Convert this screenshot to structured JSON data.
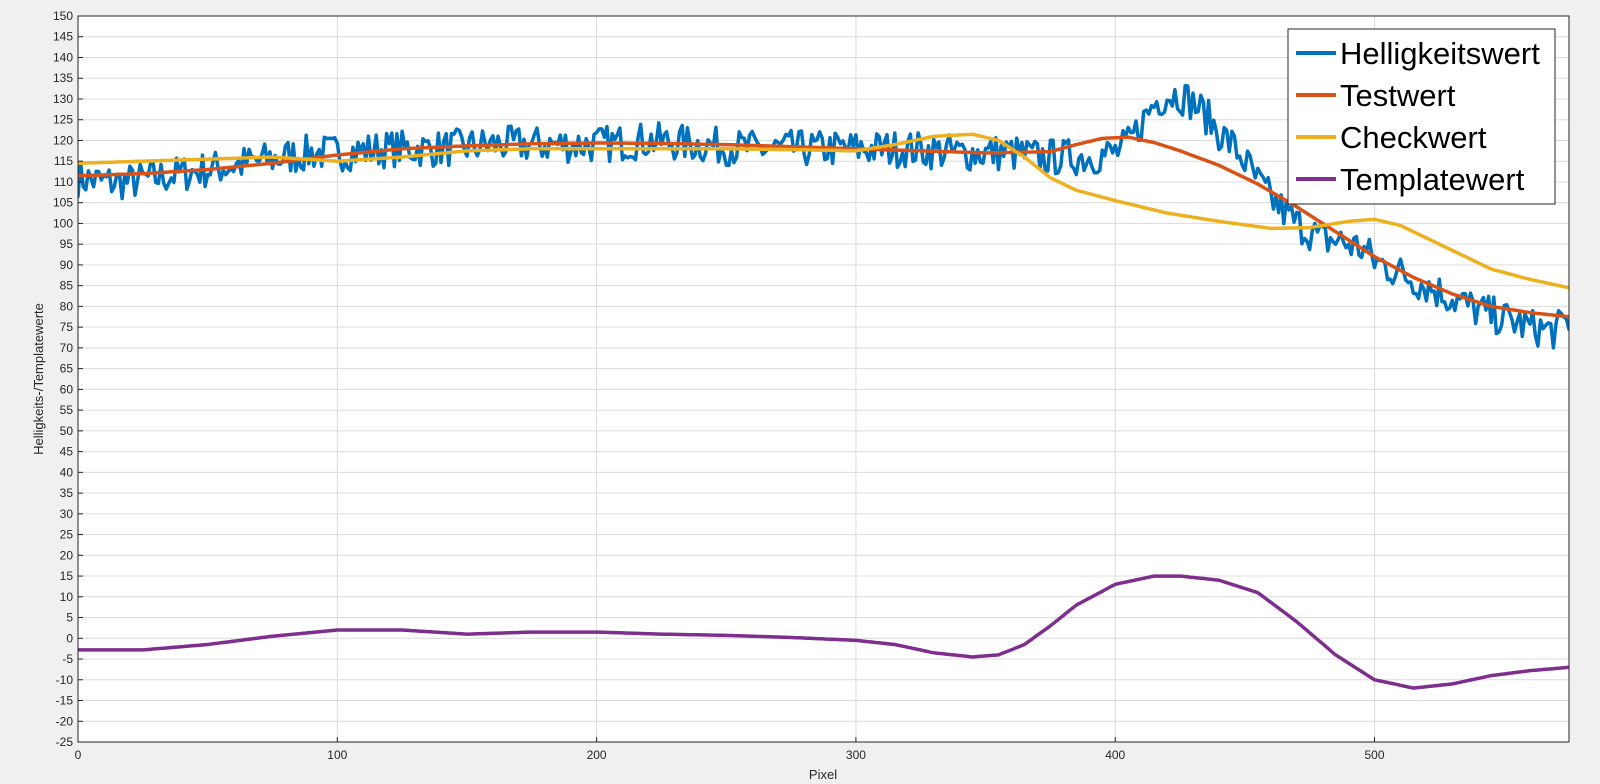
{
  "chart_data": {
    "type": "line",
    "title": "",
    "xlabel": "Pixel",
    "ylabel": "Helligkeits-/Templatewerte",
    "xlim": [
      0,
      575
    ],
    "ylim": [
      -25,
      150
    ],
    "xticks": [
      0,
      100,
      200,
      300,
      400,
      500
    ],
    "xtick_labels": [
      "0",
      "100",
      "200",
      "300",
      "400",
      "500"
    ],
    "yticks": [
      -25,
      -20,
      -15,
      -10,
      -5,
      0,
      5,
      10,
      15,
      20,
      25,
      30,
      35,
      40,
      45,
      50,
      55,
      60,
      65,
      70,
      75,
      80,
      85,
      90,
      95,
      100,
      105,
      110,
      115,
      120,
      125,
      130,
      135,
      140,
      145,
      150
    ],
    "ytick_labels": [
      "-25",
      "-20",
      "-15",
      "-10",
      "-5",
      "0",
      "5",
      "10",
      "15",
      "20",
      "25",
      "30",
      "35",
      "40",
      "45",
      "50",
      "55",
      "60",
      "65",
      "70",
      "75",
      "80",
      "85",
      "90",
      "95",
      "100",
      "105",
      "110",
      "115",
      "120",
      "125",
      "130",
      "135",
      "140",
      "145",
      "150"
    ],
    "grid": true,
    "legend_position": "top-right",
    "series": [
      {
        "name": "Helligkeitswert",
        "color": "#0072BD",
        "noisy": true,
        "x": [
          0,
          10,
          20,
          30,
          40,
          50,
          60,
          70,
          80,
          90,
          100,
          120,
          140,
          160,
          180,
          200,
          220,
          240,
          260,
          280,
          300,
          320,
          340,
          360,
          370,
          380,
          390,
          400,
          405,
          410,
          415,
          420,
          425,
          430,
          435,
          440,
          445,
          450,
          455,
          460,
          465,
          470,
          475,
          480,
          485,
          490,
          495,
          500,
          510,
          520,
          530,
          540,
          550,
          560,
          570,
          575
        ],
        "values": [
          111,
          110,
          110,
          111,
          112,
          113,
          114,
          115,
          116,
          117,
          117,
          118,
          118,
          119,
          119,
          119,
          120,
          119,
          118,
          118,
          118,
          118,
          117,
          117,
          116,
          116,
          116,
          117,
          119,
          124,
          129,
          131,
          131,
          129,
          126,
          122,
          119,
          115,
          110,
          106,
          103,
          100,
          98,
          96,
          96,
          95,
          94,
          91,
          88,
          85,
          82,
          79,
          77,
          75,
          74,
          77
        ]
      },
      {
        "name": "Testwert",
        "color": "#D95319",
        "noisy": false,
        "x": [
          0,
          25,
          50,
          75,
          100,
          125,
          150,
          175,
          200,
          225,
          250,
          275,
          300,
          325,
          350,
          375,
          385,
          395,
          405,
          415,
          425,
          440,
          455,
          470,
          485,
          500,
          515,
          530,
          545,
          560,
          575
        ],
        "values": [
          111.5,
          112,
          113,
          114.5,
          116.5,
          118,
          118.7,
          119.2,
          119.4,
          119.3,
          119,
          118.5,
          118,
          117.5,
          117,
          117.3,
          119,
          120.5,
          120.8,
          119.5,
          117.5,
          114,
          109.5,
          104,
          98,
          92,
          87,
          83,
          80,
          78.5,
          77.5
        ]
      },
      {
        "name": "Checkwert",
        "color": "#EDB120",
        "noisy": false,
        "x": [
          0,
          25,
          50,
          75,
          100,
          125,
          150,
          175,
          200,
          225,
          250,
          275,
          300,
          315,
          330,
          345,
          355,
          365,
          375,
          385,
          400,
          420,
          440,
          460,
          475,
          490,
          500,
          510,
          525,
          545,
          560,
          575
        ],
        "values": [
          114.5,
          115,
          115.5,
          116,
          115,
          116,
          117.5,
          118,
          118,
          118,
          118,
          117.8,
          117.5,
          119,
          121,
          121.5,
          120,
          116,
          111,
          108,
          105.5,
          102.5,
          100.5,
          98.8,
          99,
          100.5,
          101,
          99.5,
          95,
          89,
          86.5,
          84.5
        ]
      },
      {
        "name": "Templatewert",
        "color": "#7E2F8E",
        "noisy": false,
        "x": [
          0,
          25,
          50,
          75,
          100,
          125,
          150,
          175,
          200,
          225,
          250,
          275,
          300,
          315,
          330,
          345,
          355,
          365,
          375,
          385,
          400,
          415,
          425,
          440,
          455,
          470,
          485,
          500,
          515,
          530,
          545,
          560,
          575
        ],
        "values": [
          -2.8,
          -2.8,
          -1.5,
          0.5,
          2,
          2,
          1,
          1.5,
          1.5,
          1,
          0.7,
          0.2,
          -0.5,
          -1.5,
          -3.5,
          -4.5,
          -4,
          -1.5,
          3,
          8,
          13,
          15,
          15,
          14,
          11,
          4,
          -4,
          -10,
          -12,
          -11,
          -9,
          -7.8,
          -7
        ]
      }
    ]
  }
}
